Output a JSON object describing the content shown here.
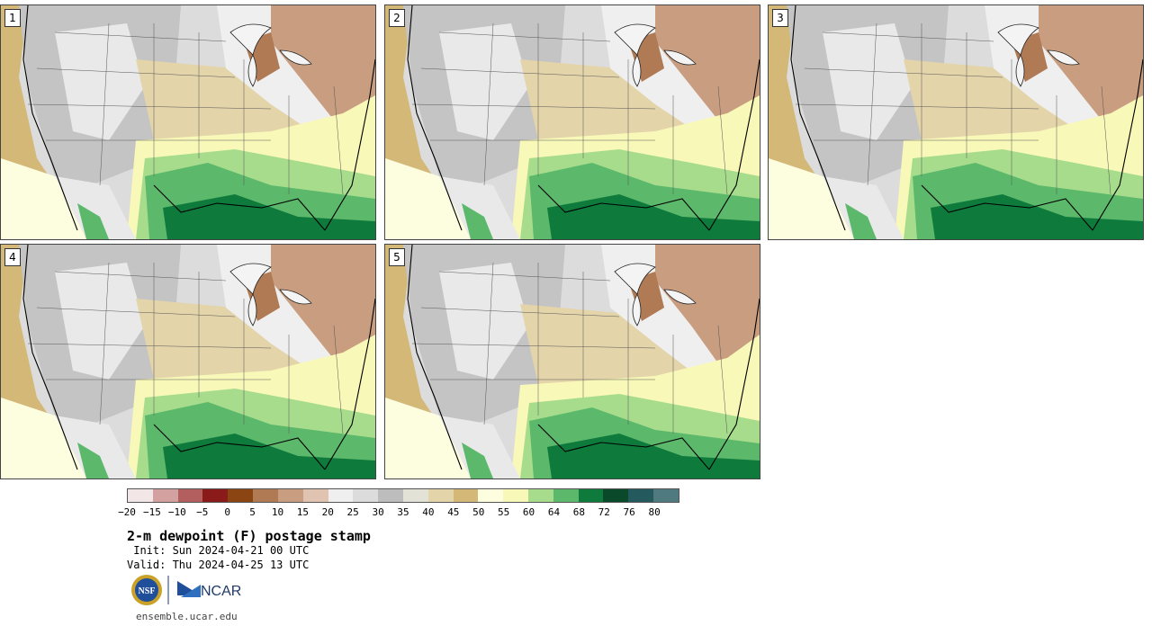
{
  "panels": [
    {
      "label": "1"
    },
    {
      "label": "2"
    },
    {
      "label": "3"
    },
    {
      "label": "4"
    },
    {
      "label": "5"
    }
  ],
  "colorbar": {
    "colors": [
      "#f3e6e6",
      "#d4a1a1",
      "#b35f5f",
      "#8b1a1a",
      "#8b4513",
      "#b07a55",
      "#c99e80",
      "#e0c3b0",
      "#efefef",
      "#dcdcdc",
      "#bdbdbd",
      "#e2e2d6",
      "#e3d4aa",
      "#d3b878",
      "#fdfde0",
      "#f8f8b8",
      "#a6dc8c",
      "#5cb86a",
      "#0e7a3b",
      "#0a4a2a",
      "#245a5e",
      "#4f7a80"
    ],
    "ticks": [
      "−20",
      "−15",
      "−10",
      "−5",
      "0",
      "5",
      "10",
      "15",
      "20",
      "25",
      "30",
      "35",
      "40",
      "45",
      "50",
      "55",
      "60",
      "64",
      "68",
      "72",
      "76",
      "80"
    ]
  },
  "title": "2-m dewpoint (F) postage stamp",
  "init": " Init: Sun 2024-04-21 00 UTC",
  "valid": "Valid: Thu 2024-04-25 13 UTC",
  "logos": {
    "nsf": "NSF",
    "ncar": "NCAR"
  },
  "url": "ensemble.ucar.edu"
}
